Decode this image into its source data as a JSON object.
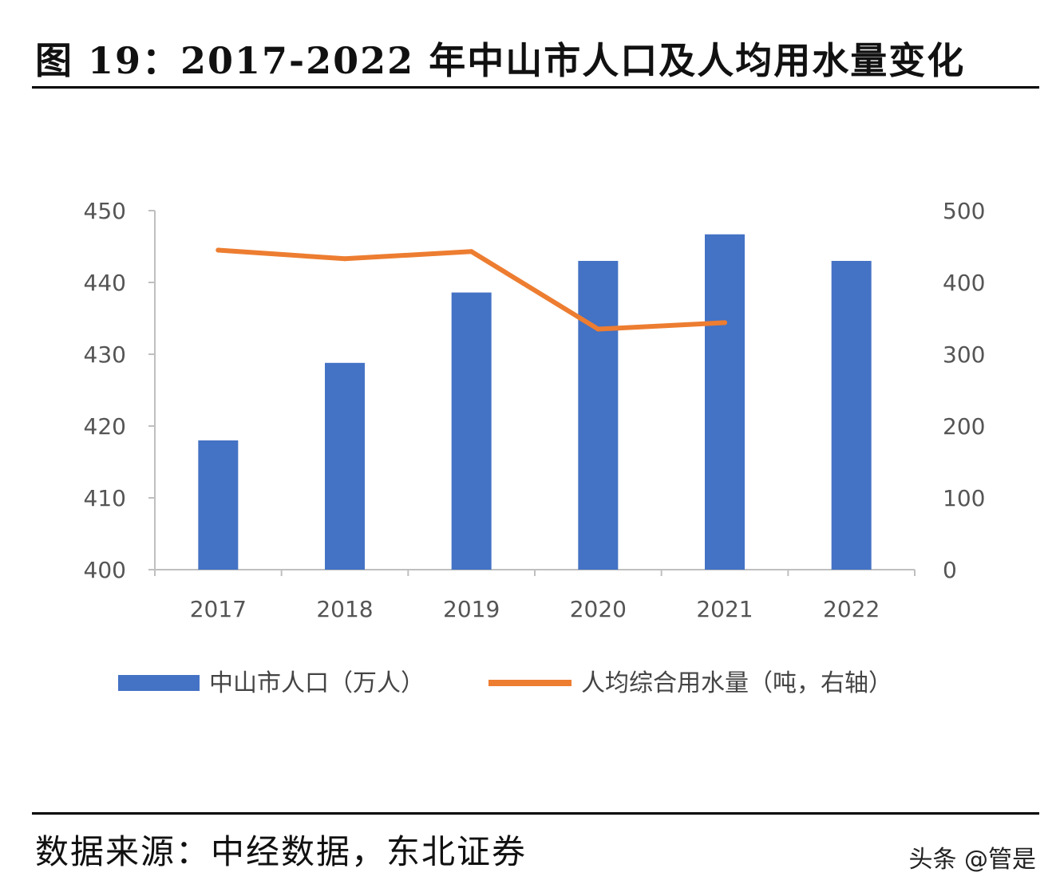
{
  "title": "图 19：2017-2022 年中山市人口及人均用水量变化",
  "source": "数据来源：中经数据，东北证券",
  "watermark": "头条 @管是",
  "colors": {
    "bar": "#4472C4",
    "line": "#ED7D31",
    "axis": "#BFBFBF",
    "text": "#595959"
  },
  "chart_data": {
    "type": "bar",
    "categories": [
      "2017",
      "2018",
      "2019",
      "2020",
      "2021",
      "2022"
    ],
    "series": [
      {
        "name": "中山市人口（万人）",
        "type": "bar",
        "axis": "left",
        "values": [
          418,
          428.8,
          438.6,
          443,
          446.7,
          443
        ]
      },
      {
        "name": "人均综合用水量（吨，右轴）",
        "type": "line",
        "axis": "right",
        "values": [
          445,
          433,
          443,
          335,
          344,
          null
        ]
      }
    ],
    "y_left": {
      "range": [
        400,
        450
      ],
      "ticks": [
        400,
        410,
        420,
        430,
        440,
        450
      ]
    },
    "y_right": {
      "range": [
        0,
        500
      ],
      "ticks": [
        0,
        100,
        200,
        300,
        400,
        500
      ]
    },
    "legend_position": "bottom",
    "grid": false
  }
}
